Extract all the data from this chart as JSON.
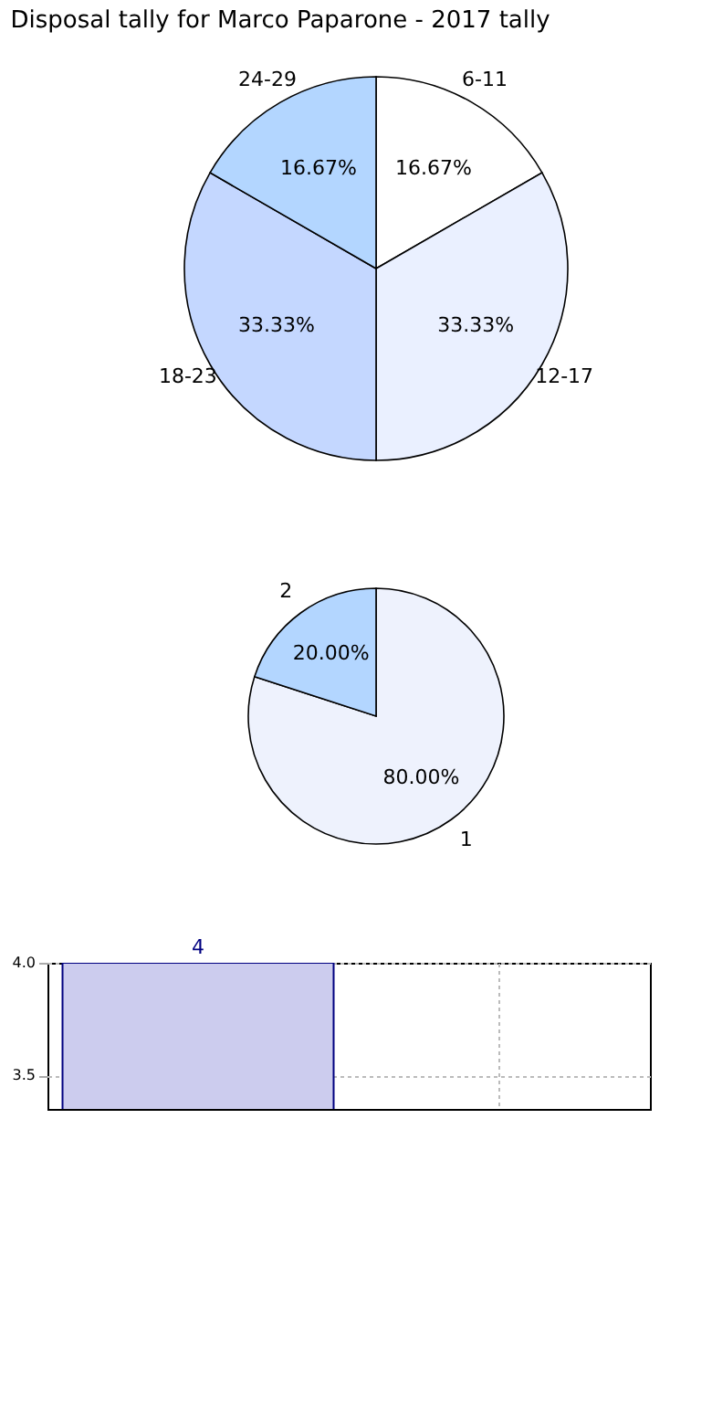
{
  "chart_data": [
    {
      "type": "pie",
      "title": "Disposal tally for Marco Paparone - 2017 tally",
      "categories": [
        "6-11",
        "12-17",
        "18-23",
        "24-29"
      ],
      "values": [
        16.67,
        33.33,
        33.33,
        16.67
      ],
      "colors": [
        "#ffffff",
        "#eaf0ff",
        "#c4d7ff",
        "#b3d6ff"
      ],
      "value_labels": [
        "16.67%",
        "33.33%",
        "33.33%",
        "16.67%"
      ]
    },
    {
      "type": "pie",
      "categories": [
        "1",
        "2"
      ],
      "values": [
        80,
        20
      ],
      "colors": [
        "#eef2fd",
        "#b3d6ff"
      ],
      "value_labels": [
        "80.00%",
        "20.00%"
      ]
    },
    {
      "type": "bar",
      "categories": [
        null,
        null
      ],
      "values": [
        4,
        null
      ],
      "color": "#ccccee",
      "value_labels": [
        "4",
        null
      ],
      "ylim": [
        3.35,
        4.0
      ],
      "yticks": [
        {
          "value": 3.5,
          "label": "3.5"
        },
        {
          "value": 4,
          "label": "4.0"
        }
      ],
      "grid": true
    }
  ]
}
